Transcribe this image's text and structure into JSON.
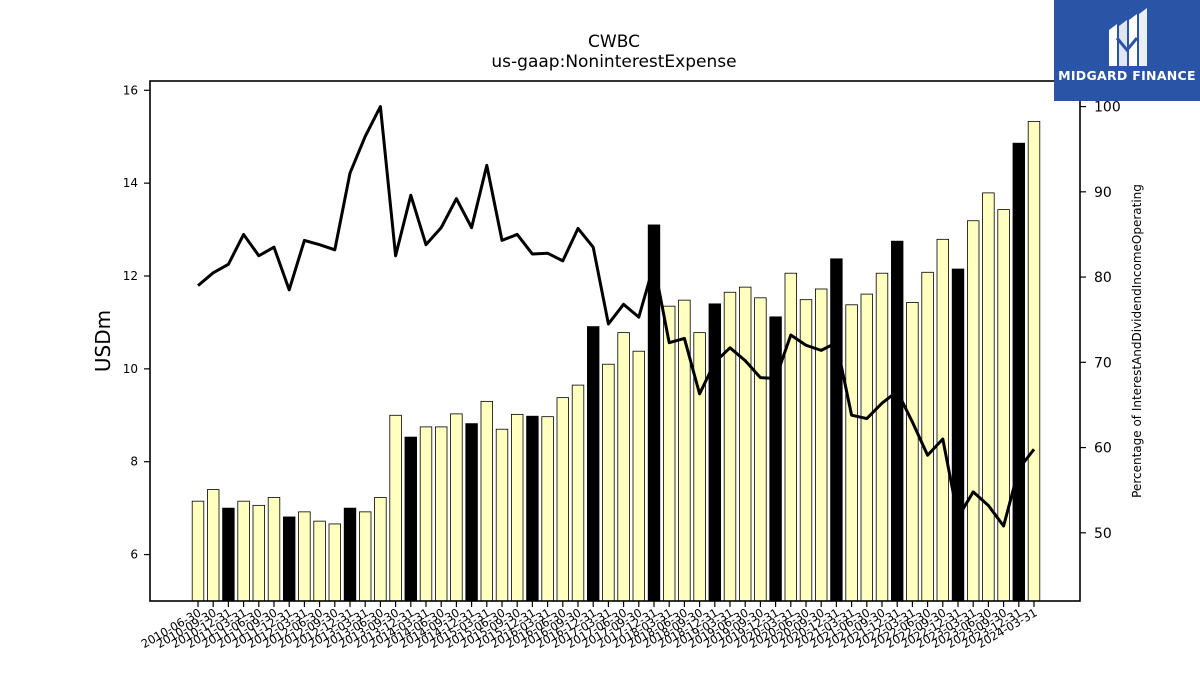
{
  "chart_data": {
    "type": "bar",
    "title": "CWBC",
    "subtitle": "us-gaap:NoninterestExpense",
    "ylabel": "USDm",
    "y2label": "Percentage of InterestAndDividendIncomeOperating",
    "ylim": [
      5,
      16.2
    ],
    "y2lim": [
      42,
      103
    ],
    "yticks": [
      6,
      8,
      10,
      12,
      14,
      16
    ],
    "y2ticks": [
      50,
      60,
      70,
      80,
      90,
      100
    ],
    "categories": [
      "2010-06-30",
      "2010-09-30",
      "2010-12-31",
      "2011-03-31",
      "2011-06-30",
      "2011-09-30",
      "2011-12-31",
      "2012-03-31",
      "2012-06-30",
      "2012-09-30",
      "2012-12-31",
      "2013-03-31",
      "2013-06-30",
      "2013-09-30",
      "2013-12-31",
      "2014-03-31",
      "2014-06-30",
      "2014-09-30",
      "2014-12-31",
      "2015-03-31",
      "2015-06-30",
      "2015-09-30",
      "2015-12-31",
      "2016-03-31",
      "2016-06-30",
      "2016-09-30",
      "2016-12-31",
      "2017-03-31",
      "2017-06-30",
      "2017-09-30",
      "2017-12-31",
      "2018-03-31",
      "2018-06-30",
      "2018-09-30",
      "2018-12-31",
      "2019-03-31",
      "2019-06-30",
      "2019-09-30",
      "2019-12-31",
      "2020-03-31",
      "2020-06-30",
      "2020-09-30",
      "2020-12-31",
      "2021-03-31",
      "2021-06-30",
      "2021-09-30",
      "2021-12-31",
      "2022-03-31",
      "2022-06-30",
      "2022-09-30",
      "2022-12-31",
      "2023-03-31",
      "2023-06-30",
      "2023-09-30",
      "2023-12-31",
      "2024-03-31"
    ],
    "series": [
      {
        "type": "bar",
        "values": [
          7.15,
          7.4,
          7.0,
          7.15,
          7.06,
          7.23,
          6.81,
          6.92,
          6.72,
          6.66,
          7.0,
          6.92,
          7.23,
          9.0,
          8.53,
          8.75,
          8.75,
          9.03,
          8.82,
          9.3,
          8.7,
          9.02,
          8.98,
          8.97,
          9.38,
          9.65,
          10.91,
          10.1,
          10.78,
          10.38,
          13.1,
          11.35,
          11.48,
          10.78,
          11.4,
          11.65,
          11.76,
          11.53,
          11.12,
          12.06,
          11.49,
          11.72,
          12.37,
          11.38,
          11.61,
          12.06,
          12.75,
          11.43,
          12.08,
          12.79,
          12.15,
          13.19,
          13.79,
          13.43,
          14.86,
          15.33
        ],
        "highlight": [
          false,
          false,
          true,
          false,
          false,
          false,
          true,
          false,
          false,
          false,
          true,
          false,
          false,
          false,
          true,
          false,
          false,
          false,
          true,
          false,
          false,
          false,
          true,
          false,
          false,
          false,
          true,
          false,
          false,
          false,
          true,
          false,
          false,
          false,
          true,
          false,
          false,
          false,
          true,
          false,
          false,
          false,
          true,
          false,
          false,
          false,
          true,
          false,
          false,
          false,
          true,
          false,
          false,
          false,
          true,
          false
        ]
      },
      {
        "type": "line",
        "axis": "right",
        "values": [
          79,
          80.5,
          81.5,
          85,
          82.5,
          83.5,
          78.5,
          84.3,
          83.8,
          83.2,
          92.2,
          96.5,
          100,
          82.5,
          89.6,
          83.8,
          85.8,
          89.2,
          85.8,
          93.1,
          84.3,
          85,
          82.7,
          82.8,
          81.9,
          85.7,
          83.5,
          74.5,
          76.8,
          75.3,
          81.5,
          72.3,
          72.8,
          66.3,
          70,
          71.7,
          70.2,
          68.2,
          68.1,
          73.2,
          72,
          71.4,
          72.3,
          63.8,
          63.4,
          65.2,
          66.6,
          63,
          59.1,
          61,
          51.8,
          54.8,
          53.2,
          50.8,
          57.5,
          59.8
        ]
      }
    ],
    "colors": {
      "bar": "#ffffbf",
      "bar_highlight": "#000000",
      "bar_edge": "#000000",
      "line": "#000000"
    }
  },
  "logo": {
    "text": "MIDGARD FINANCE"
  }
}
